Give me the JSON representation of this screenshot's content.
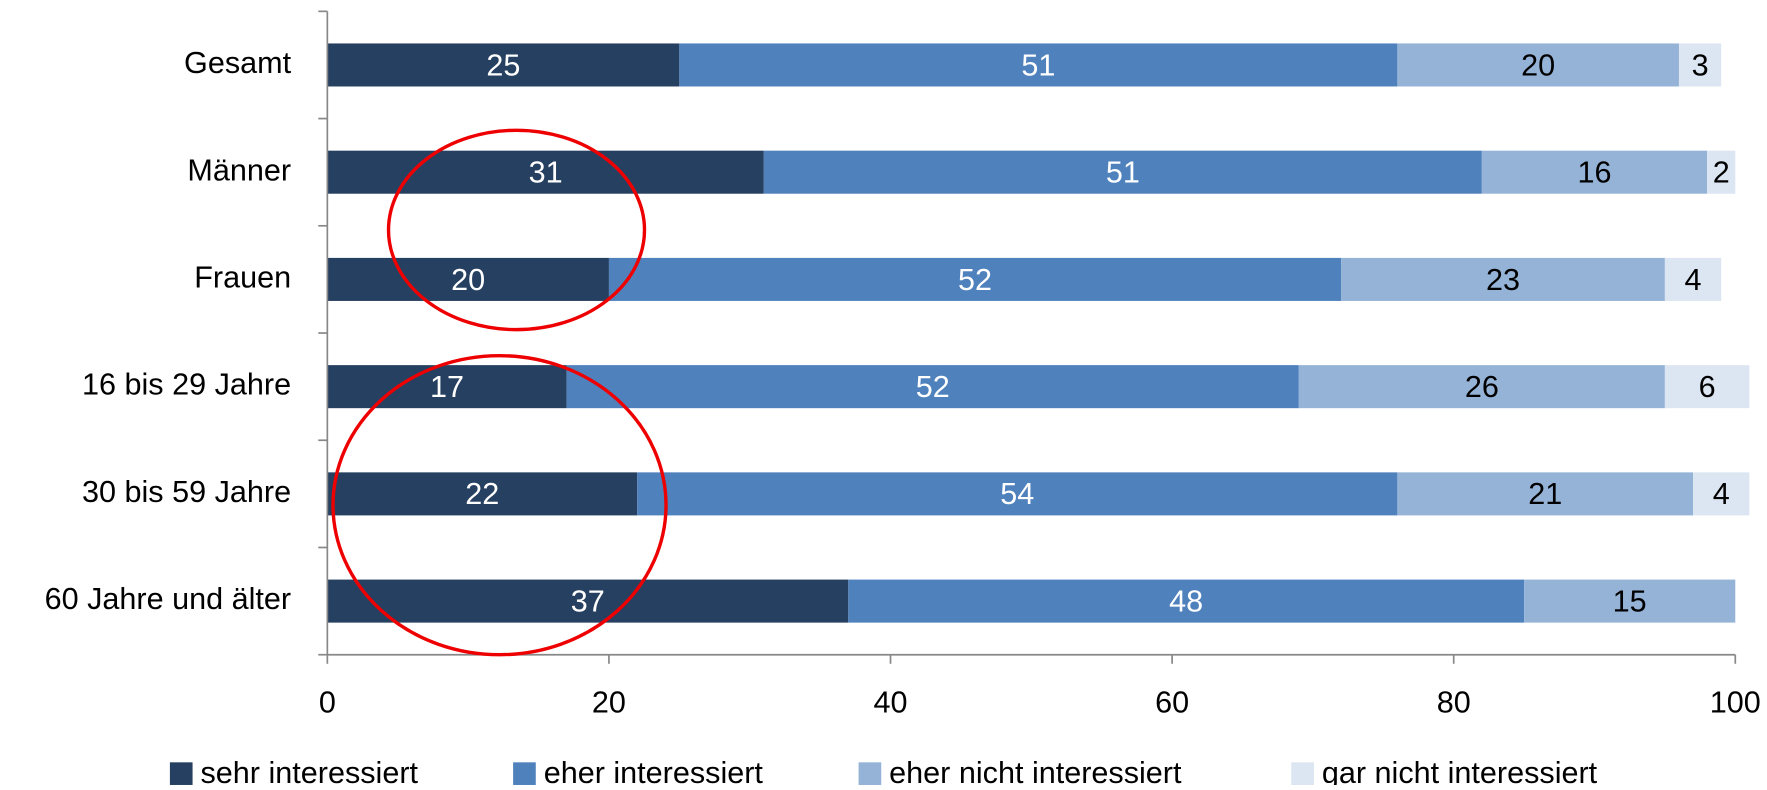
{
  "chart_data": {
    "type": "stacked-barh",
    "categories": [
      "Gesamt",
      "Männer",
      "Frauen",
      "16 bis 29 Jahre",
      "30 bis 59 Jahre",
      "60 Jahre und älter"
    ],
    "series": [
      {
        "name": "sehr interessiert",
        "color": "#264061",
        "label_color": "#ffffff",
        "values": [
          25,
          31,
          20,
          17,
          22,
          37
        ]
      },
      {
        "name": "eher interessiert",
        "color": "#4f81bd",
        "label_color": "#ffffff",
        "values": [
          51,
          51,
          52,
          52,
          54,
          48
        ]
      },
      {
        "name": "eher nicht interessiert",
        "color": "#95b3d7",
        "label_color": "#000000",
        "values": [
          20,
          16,
          23,
          26,
          21,
          15
        ]
      },
      {
        "name": "gar nicht interessiert",
        "color": "#dce6f2",
        "label_color": "#000000",
        "values": [
          3,
          2,
          4,
          6,
          4,
          null
        ]
      }
    ],
    "xlim": [
      0,
      100
    ],
    "xticks": [
      0,
      20,
      40,
      60,
      80,
      100
    ],
    "legend": "bottom"
  }
}
